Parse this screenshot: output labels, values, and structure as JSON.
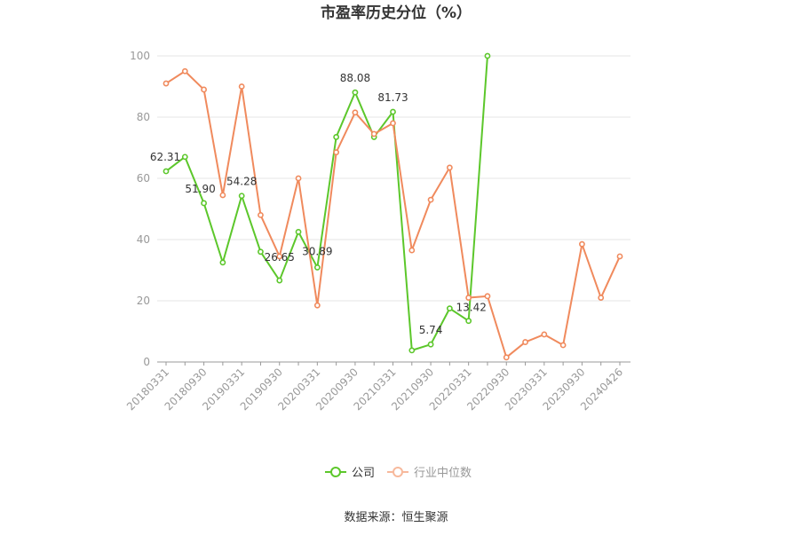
{
  "chart_data": {
    "type": "line",
    "title": "市盈率历史分位（%）",
    "source": "数据来源：恒生聚源",
    "ylim": [
      0,
      100
    ],
    "yticks": [
      0,
      20,
      40,
      60,
      80,
      100
    ],
    "grid": true,
    "legend_position": "bottom",
    "x": [
      "20180331",
      "20180630",
      "20180930",
      "20181231",
      "20190331",
      "20190630",
      "20190930",
      "20191231",
      "20200331",
      "20200630",
      "20200930",
      "20201231",
      "20210331",
      "20210630",
      "20210930",
      "20211231",
      "20220331",
      "20220630",
      "20220930",
      "20221231",
      "20230331",
      "20230630",
      "20230930",
      "20231231",
      "20240426"
    ],
    "xtick_labels": [
      "20180331",
      "20180930",
      "20190331",
      "20190930",
      "20200331",
      "20200930",
      "20210331",
      "20210930",
      "20220331",
      "20220930",
      "20230331",
      "20230930",
      "20240426"
    ],
    "series": [
      {
        "name": "公司",
        "color": "#5cc72b",
        "values": [
          62.31,
          67,
          51.9,
          32.5,
          54.28,
          36,
          26.65,
          42.5,
          30.89,
          73.5,
          88.08,
          73.5,
          81.73,
          3.8,
          5.74,
          17.5,
          13.42,
          100,
          null,
          null,
          null,
          null,
          null,
          null,
          null
        ],
        "labels": [
          {
            "index": 0,
            "text": "62.31"
          },
          {
            "index": 2,
            "text": "51.90"
          },
          {
            "index": 4,
            "text": "54.28"
          },
          {
            "index": 6,
            "text": "26.65"
          },
          {
            "index": 8,
            "text": "30.89"
          },
          {
            "index": 10,
            "text": "88.08"
          },
          {
            "index": 12,
            "text": "81.73"
          },
          {
            "index": 14,
            "text": "5.74"
          },
          {
            "index": 16,
            "text": "13.42"
          }
        ]
      },
      {
        "name": "行业中位数",
        "color": "#f08a5d",
        "values": [
          91,
          95,
          89,
          54.5,
          90,
          48,
          34.5,
          60,
          18.5,
          68.5,
          81.5,
          74.5,
          78,
          36.5,
          53,
          63.5,
          21,
          21.5,
          1.5,
          6.5,
          9,
          5.5,
          38.5,
          21,
          34.5
        ]
      }
    ]
  }
}
